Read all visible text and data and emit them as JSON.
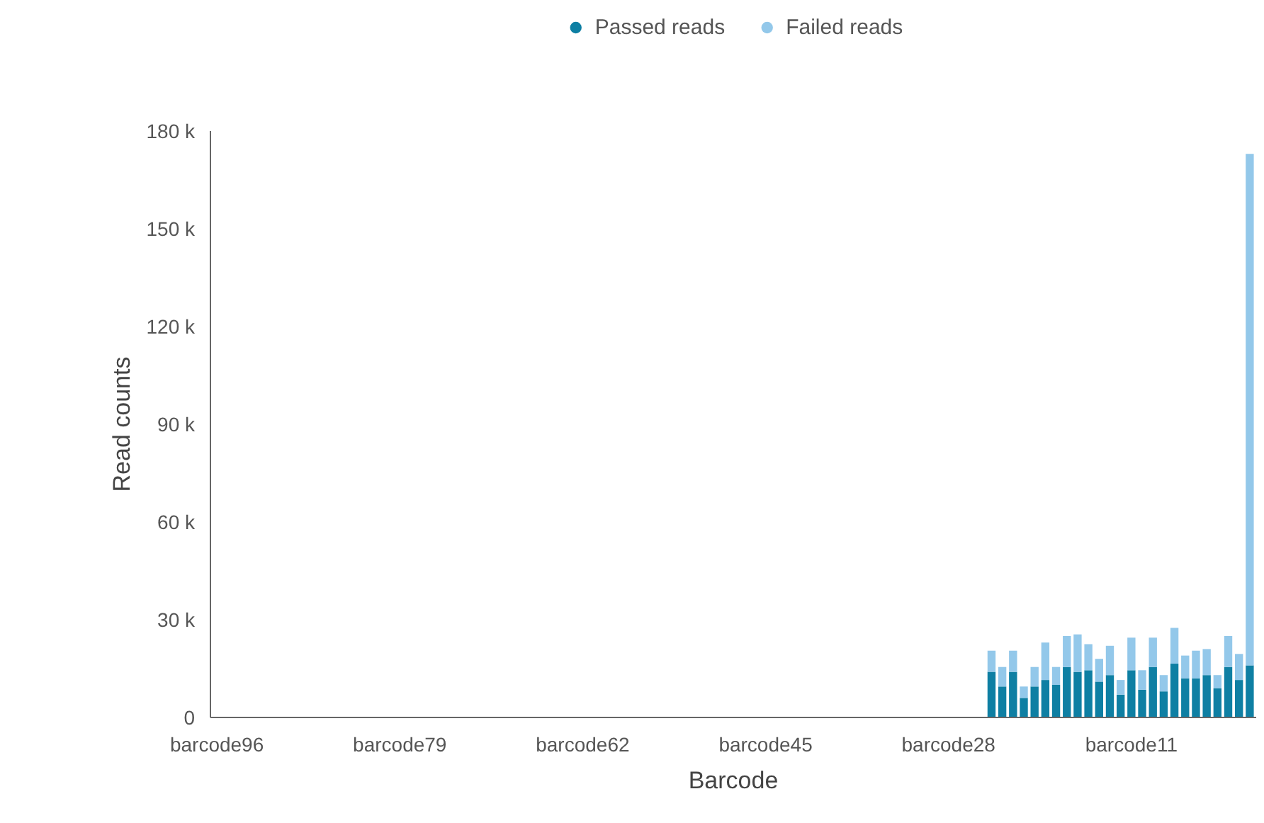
{
  "chart_data": {
    "type": "bar",
    "stacked": true,
    "xlabel": "Barcode",
    "ylabel": "Read counts",
    "categories": [
      "barcode96",
      null,
      null,
      null,
      null,
      null,
      null,
      null,
      null,
      null,
      null,
      null,
      null,
      null,
      null,
      null,
      null,
      "barcode79",
      null,
      null,
      null,
      null,
      null,
      null,
      null,
      null,
      null,
      null,
      null,
      null,
      null,
      null,
      null,
      null,
      "barcode62",
      null,
      null,
      null,
      null,
      null,
      null,
      null,
      null,
      null,
      null,
      null,
      null,
      null,
      null,
      null,
      null,
      "barcode45",
      null,
      null,
      null,
      null,
      null,
      null,
      null,
      null,
      null,
      null,
      null,
      null,
      null,
      null,
      null,
      null,
      "barcode28",
      null,
      null,
      null,
      null,
      null,
      null,
      null,
      null,
      null,
      null,
      null,
      null,
      null,
      null,
      null,
      null,
      "barcode11",
      null,
      null,
      null,
      null,
      null,
      null,
      null,
      null,
      null,
      null,
      null
    ],
    "series": [
      {
        "name": "Passed reads",
        "color": "#0e7fa3",
        "values": [
          0,
          0,
          0,
          0,
          0,
          0,
          0,
          0,
          0,
          0,
          0,
          0,
          0,
          0,
          0,
          0,
          0,
          0,
          0,
          0,
          0,
          0,
          0,
          0,
          0,
          0,
          0,
          0,
          0,
          0,
          0,
          0,
          0,
          0,
          0,
          0,
          0,
          0,
          0,
          0,
          0,
          0,
          0,
          0,
          0,
          0,
          0,
          0,
          0,
          0,
          0,
          0,
          0,
          0,
          0,
          0,
          0,
          0,
          0,
          0,
          0,
          0,
          0,
          0,
          0,
          0,
          0,
          0,
          0,
          0,
          0,
          0,
          14000,
          9500,
          14000,
          6000,
          9500,
          11500,
          10000,
          15500,
          14000,
          14500,
          11000,
          13000,
          7000,
          14500,
          8500,
          15500,
          8000,
          16500,
          12000,
          12000,
          13000,
          9000,
          15500,
          11500,
          16000
        ]
      },
      {
        "name": "Failed reads",
        "color": "#93c8ea",
        "values": [
          0,
          0,
          0,
          0,
          0,
          0,
          0,
          0,
          0,
          0,
          0,
          0,
          0,
          0,
          0,
          0,
          0,
          0,
          0,
          0,
          0,
          0,
          0,
          0,
          0,
          0,
          0,
          0,
          0,
          0,
          0,
          0,
          0,
          0,
          0,
          0,
          0,
          0,
          0,
          0,
          0,
          0,
          0,
          0,
          0,
          0,
          0,
          0,
          0,
          0,
          0,
          0,
          0,
          0,
          0,
          0,
          0,
          0,
          0,
          0,
          0,
          0,
          0,
          0,
          0,
          0,
          0,
          0,
          0,
          0,
          0,
          0,
          6500,
          6000,
          6500,
          3500,
          6000,
          11500,
          5500,
          9500,
          11500,
          8000,
          7000,
          9000,
          4500,
          10000,
          6000,
          9000,
          5000,
          11000,
          7000,
          8500,
          8000,
          4000,
          9500,
          8000,
          157000
        ]
      }
    ],
    "ylim": [
      0,
      180000
    ],
    "yticks": [
      {
        "value": 0,
        "label": "0"
      },
      {
        "value": 30000,
        "label": "30 k"
      },
      {
        "value": 60000,
        "label": "60 k"
      },
      {
        "value": 90000,
        "label": "90 k"
      },
      {
        "value": 120000,
        "label": "120 k"
      },
      {
        "value": 150000,
        "label": "150 k"
      },
      {
        "value": 180000,
        "label": "180 k"
      }
    ],
    "grid": false,
    "legend": "top"
  }
}
